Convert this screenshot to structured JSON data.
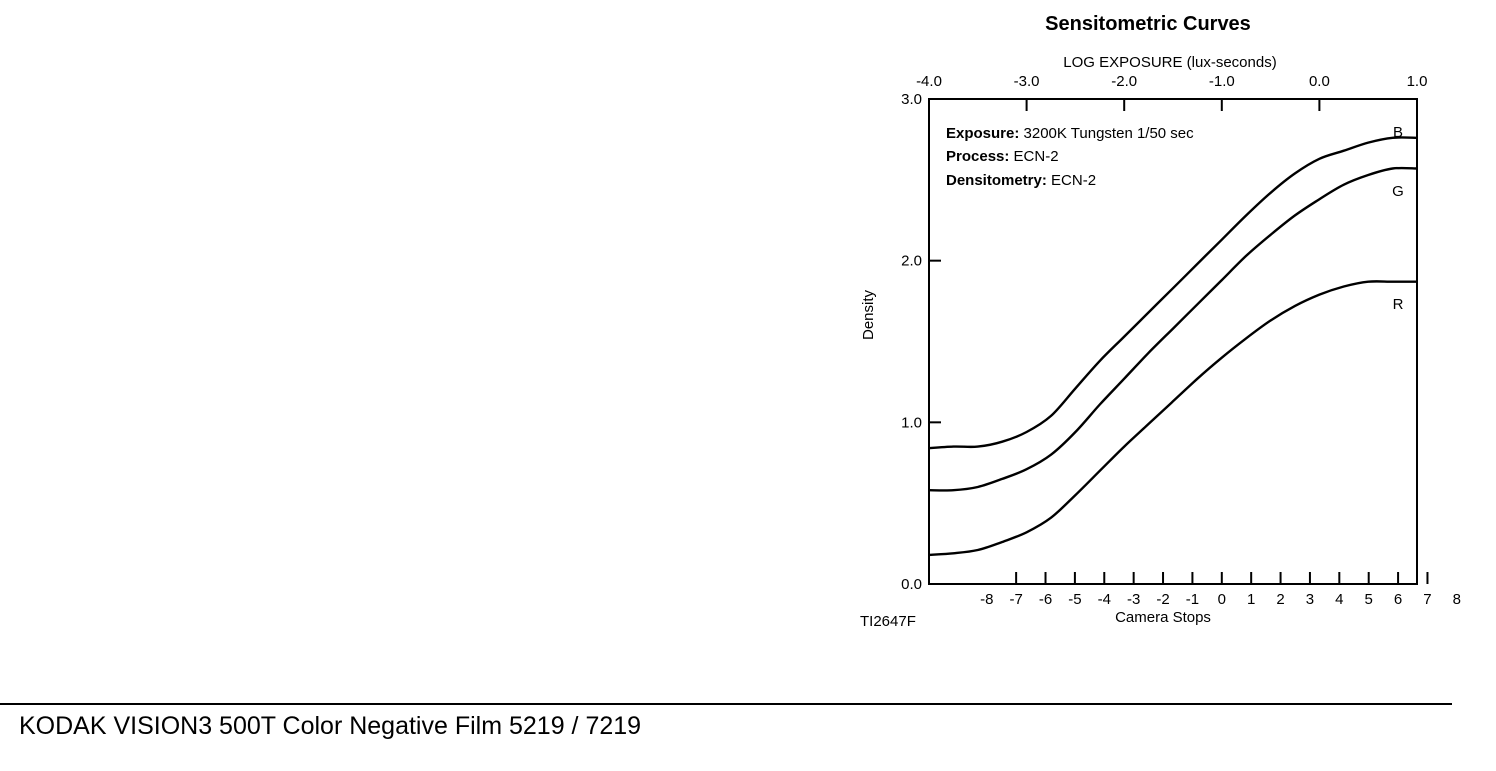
{
  "footer": {
    "product_title": "KODAK VISION3 500T Color Negative Film 5219 / 7219"
  },
  "chart_data": {
    "type": "line",
    "title": "Sensitometric Curves",
    "xlabel_top": "LOG EXPOSURE (lux-seconds)",
    "xlabel_bottom": "Camera Stops",
    "ylabel": "Density",
    "figure_id": "TI2647F",
    "xlim": [
      -4.0,
      1.0
    ],
    "ylim": [
      0.0,
      3.0
    ],
    "x_ticks_top": [
      "-4.0",
      "-3.0",
      "-2.0",
      "-1.0",
      "0.0",
      "1.0"
    ],
    "y_ticks": [
      "0.0",
      "1.0",
      "2.0",
      "3.0"
    ],
    "stop_ticks": [
      "-8",
      "-7",
      "-6",
      "-5",
      "-4",
      "-3",
      "-2",
      "-1",
      "0",
      "1",
      "2",
      "3",
      "4",
      "5",
      "6",
      "7",
      "8"
    ],
    "grid": false,
    "notes": [
      {
        "label": "Exposure:",
        "value": " 3200K Tungsten 1/50 sec"
      },
      {
        "label": "Process:",
        "value": " ECN-2"
      },
      {
        "label": "Densitometry:",
        "value": " ECN-2"
      }
    ],
    "x": [
      -4.0,
      -3.75,
      -3.5,
      -3.25,
      -3.0,
      -2.75,
      -2.5,
      -2.25,
      -2.0,
      -1.75,
      -1.5,
      -1.25,
      -1.0,
      -0.75,
      -0.5,
      -0.25,
      0.0,
      0.25,
      0.5,
      0.75,
      1.0
    ],
    "series": [
      {
        "name": "B",
        "color": "#000000",
        "values": [
          0.84,
          0.85,
          0.85,
          0.88,
          0.94,
          1.04,
          1.21,
          1.38,
          1.53,
          1.68,
          1.83,
          1.98,
          2.13,
          2.28,
          2.42,
          2.54,
          2.63,
          2.68,
          2.73,
          2.76,
          2.76
        ]
      },
      {
        "name": "G",
        "color": "#000000",
        "values": [
          0.58,
          0.58,
          0.6,
          0.65,
          0.71,
          0.8,
          0.94,
          1.11,
          1.27,
          1.43,
          1.58,
          1.73,
          1.88,
          2.03,
          2.16,
          2.28,
          2.38,
          2.47,
          2.53,
          2.57,
          2.57
        ]
      },
      {
        "name": "R",
        "color": "#000000",
        "values": [
          0.18,
          0.19,
          0.21,
          0.26,
          0.32,
          0.41,
          0.55,
          0.7,
          0.85,
          0.99,
          1.13,
          1.27,
          1.4,
          1.52,
          1.63,
          1.72,
          1.79,
          1.84,
          1.87,
          1.87,
          1.87
        ]
      }
    ]
  }
}
